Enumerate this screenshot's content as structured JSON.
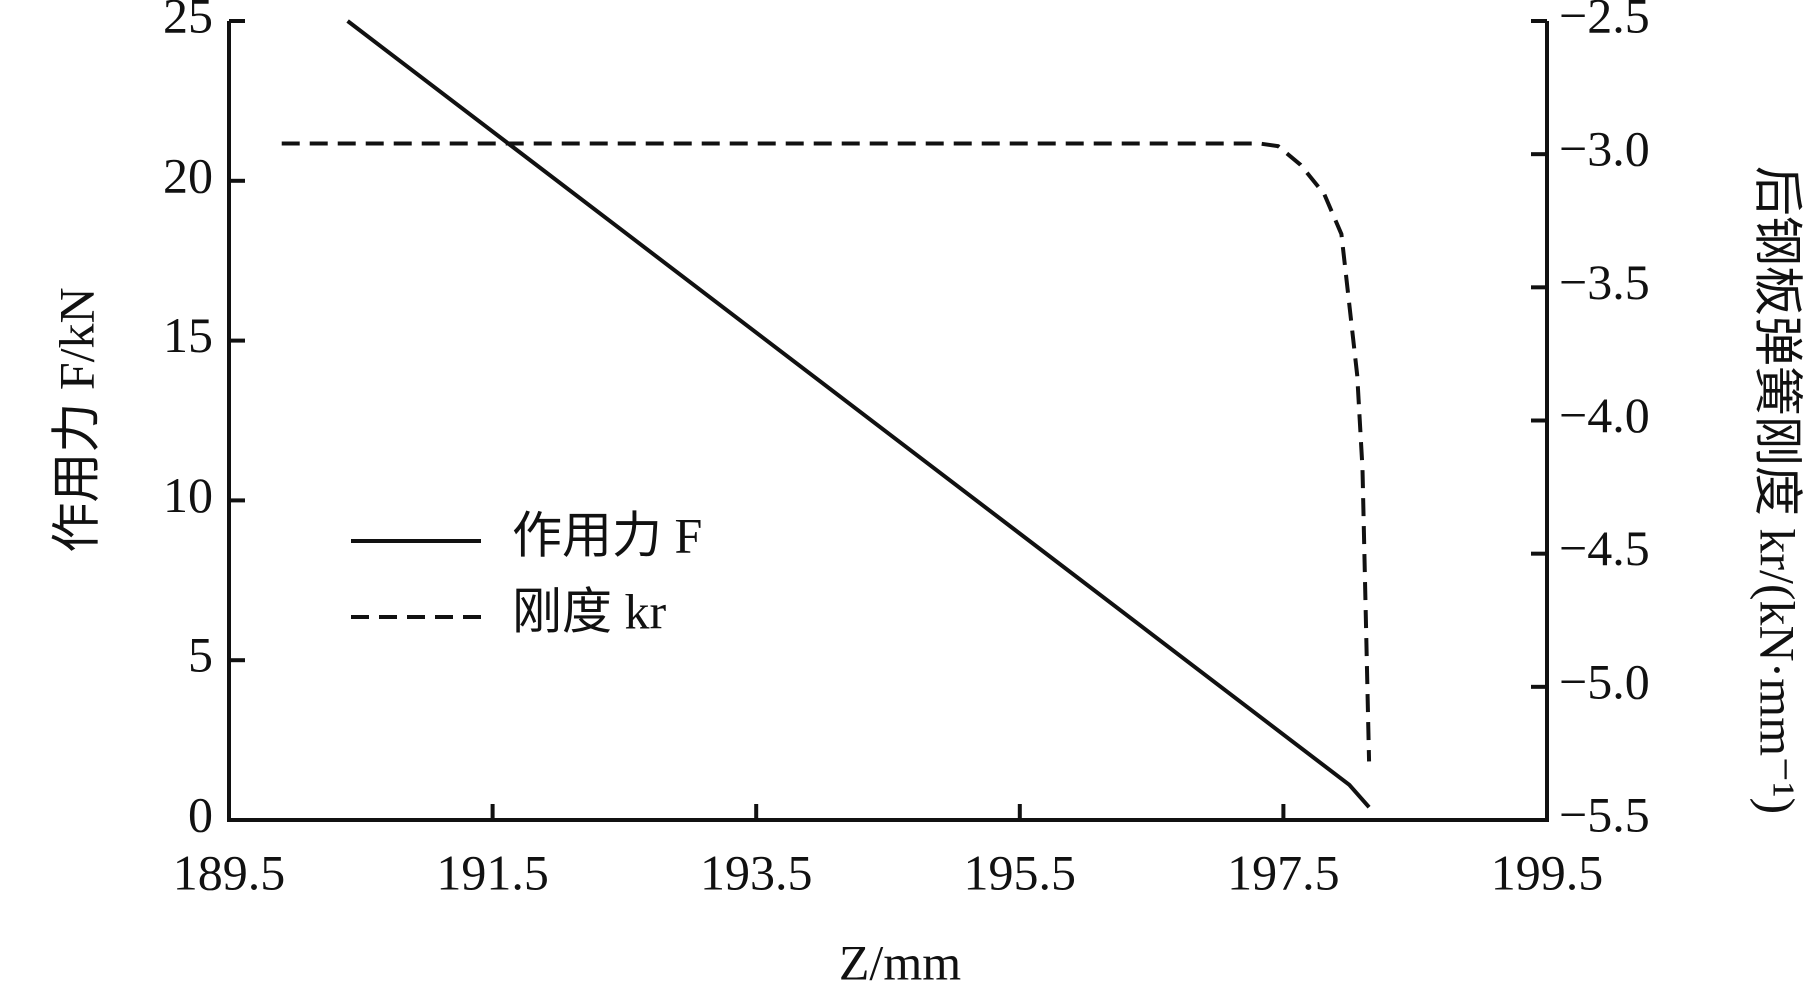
{
  "chart_data": {
    "type": "line",
    "x_label": "Z/mm",
    "y_label": "作用力 F/kN",
    "y2_label": "后钢板弹簧刚度 kr/(kN·mm⁻¹)",
    "xlim": [
      189.5,
      199.5
    ],
    "xticks": [
      189.5,
      191.5,
      193.5,
      195.5,
      197.5,
      199.5
    ],
    "ylim": [
      0,
      25
    ],
    "yticks": [
      0,
      5,
      10,
      15,
      20,
      25
    ],
    "y2lim": [
      -5.5,
      -2.5
    ],
    "y2ticks": [
      {
        "value": -5.5,
        "label": "−5.5"
      },
      {
        "value": -5,
        "label": "−5.0"
      },
      {
        "value": -4.5,
        "label": "−4.5"
      },
      {
        "value": -4,
        "label": "−4.0"
      },
      {
        "value": -3.5,
        "label": "−3.5"
      },
      {
        "value": -3,
        "label": "−3.0"
      },
      {
        "value": -2.5,
        "label": "−2.5"
      }
    ],
    "legend": "center-left",
    "series": [
      {
        "name": "作用力 F",
        "color": "#111111",
        "dash": "solid",
        "x": [
          190.4,
          198.0,
          198.15
        ],
        "values": [
          25,
          1.1,
          0.4
        ]
      },
      {
        "name": "刚度 kr",
        "color": "#111111",
        "dash": "dashed",
        "axis": "y2",
        "x": [
          189.9,
          197.32,
          197.46,
          197.63,
          197.81,
          197.94,
          197.99,
          198.06,
          198.1,
          198.12,
          198.15
        ],
        "values": [
          -2.96,
          -2.96,
          -2.97,
          -3.04,
          -3.15,
          -3.3,
          -3.52,
          -3.83,
          -4.18,
          -4.62,
          -5.28
        ]
      }
    ]
  }
}
